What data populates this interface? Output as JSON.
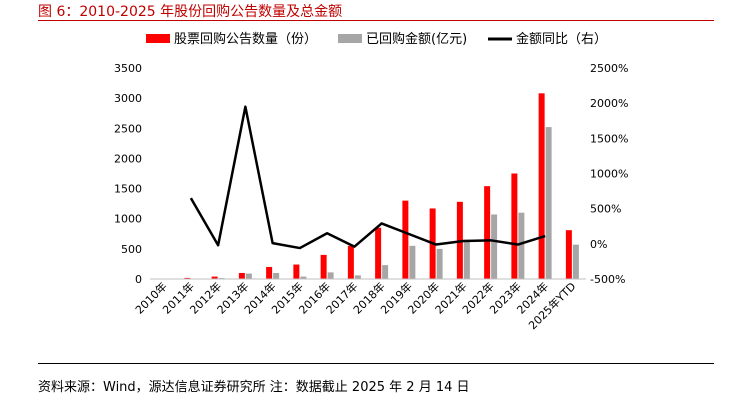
{
  "figure": {
    "title": "图 6：2010-2025 年股份回购公告数量及总金额",
    "source": "资料来源：Wind，源达信息证券研究所 注：数据截止 2025 年 2 月 14 日"
  },
  "colors": {
    "count": "#ff0000",
    "amount": "#a6a6a6",
    "yoy": "#000000",
    "title": "#c00000"
  },
  "chart_data": {
    "type": "bar",
    "categories": [
      "2010年",
      "2011年",
      "2012年",
      "2013年",
      "2014年",
      "2015年",
      "2016年",
      "2017年",
      "2018年",
      "2019年",
      "2020年",
      "2021年",
      "2022年",
      "2023年",
      "2024年",
      "2025年YTD"
    ],
    "series": [
      {
        "name": "股票回购公告数量（份）",
        "type": "bar",
        "axis": "left",
        "values": [
          3,
          18,
          40,
          100,
          200,
          240,
          400,
          550,
          850,
          1300,
          1170,
          1280,
          1540,
          1750,
          3080,
          810
        ]
      },
      {
        "name": "已回购金额(亿元)",
        "type": "bar",
        "axis": "left",
        "values": [
          0,
          5,
          15,
          90,
          100,
          40,
          110,
          60,
          230,
          550,
          500,
          650,
          1070,
          1100,
          2520,
          570
        ]
      },
      {
        "name": "金额同比（右）",
        "type": "line",
        "axis": "right",
        "values": [
          null,
          650,
          -20,
          1950,
          10,
          -60,
          150,
          -40,
          290,
          140,
          -10,
          40,
          50,
          -10,
          110,
          null
        ]
      }
    ],
    "y_left": {
      "min": 0,
      "max": 3500,
      "ticks": [
        "0",
        "500",
        "1000",
        "1500",
        "2000",
        "2500",
        "3000",
        "3500"
      ]
    },
    "y_right": {
      "min": -500,
      "max": 2500,
      "ticks": [
        "-500%",
        "0%",
        "500%",
        "1000%",
        "1500%",
        "2000%",
        "2500%"
      ]
    },
    "legend": "top",
    "grid": false
  }
}
